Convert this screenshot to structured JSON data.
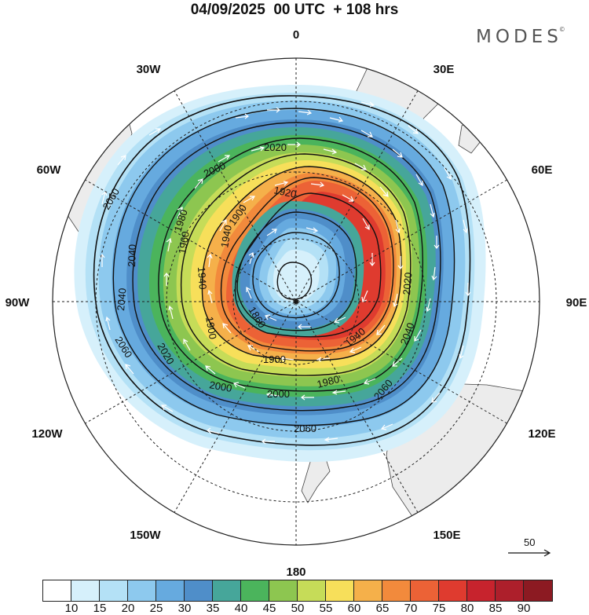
{
  "title": "04/09/2025  00 UTC  + 108 hrs",
  "brand": "MODES",
  "brand_mark": "©",
  "longitude_labels": {
    "n": "0",
    "s": "180",
    "e30": "30E",
    "e60": "60E",
    "e90": "90E",
    "e120": "120E",
    "e150": "150E",
    "w30": "30W",
    "w60": "60W",
    "w90": "90W",
    "w120": "120W",
    "w150": "150W"
  },
  "contour_labels": {
    "c1860": "1860",
    "c1900a": "1900",
    "c1900b": "1900",
    "c1900c": "1900",
    "c1920": "1920",
    "c1940a": "1940",
    "c1940b": "1940",
    "c1940c": "1940",
    "c1960": "1960",
    "c1980a": "1980",
    "c1980b": "1980",
    "c2000a": "2000",
    "c2000b": "2000",
    "c2000c": "2000",
    "c2020a": "2020",
    "c2020b": "2020",
    "c2020c": "2020",
    "c2040a": "2040",
    "c2040b": "2040",
    "c2040c": "2040",
    "c2060a": "2060",
    "c2060b": "2060",
    "c2060c": "2060",
    "c2060d": "2060"
  },
  "reference_vector": {
    "label": "50"
  },
  "colorbar": {
    "colors": [
      "#ffffff",
      "#d6f0fb",
      "#b4e1f6",
      "#8dc9ee",
      "#66aadf",
      "#4f8ec9",
      "#46a69a",
      "#4bb45c",
      "#8dc650",
      "#c6dc58",
      "#f7df5a",
      "#f5b04a",
      "#f28a3c",
      "#ec6236",
      "#df3b2f",
      "#c7232d",
      "#ad1f2b",
      "#8c1a22"
    ],
    "ticks": [
      "10",
      "15",
      "20",
      "25",
      "30",
      "35",
      "40",
      "45",
      "50",
      "55",
      "60",
      "65",
      "70",
      "75",
      "80",
      "85",
      "90"
    ]
  }
}
